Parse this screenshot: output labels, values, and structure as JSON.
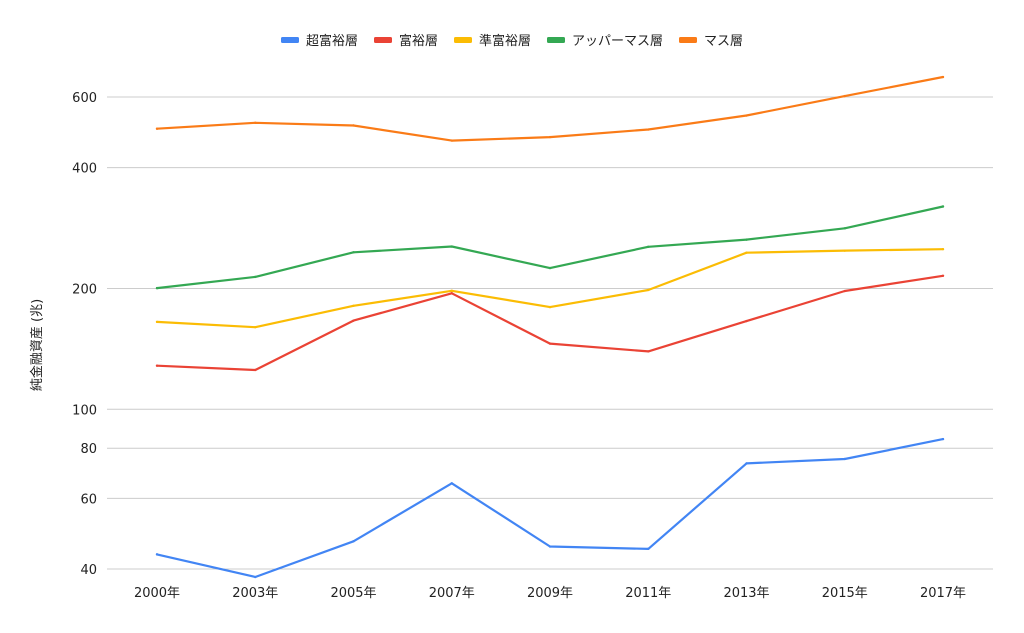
{
  "chart_data": {
    "type": "line",
    "title": "",
    "xlabel": "",
    "ylabel": "純金融資産 (兆)",
    "y_scale": "log",
    "ylim": [
      38,
      660
    ],
    "y_ticks": [
      40,
      60,
      80,
      100,
      200,
      400,
      600
    ],
    "y_tick_labels": [
      "40",
      "60",
      "80",
      "100",
      "200",
      "400",
      "600"
    ],
    "grid": true,
    "legend_position": "top",
    "categories": [
      "2000年",
      "2003年",
      "2005年",
      "2007年",
      "2009年",
      "2011年",
      "2013年",
      "2015年",
      "2017年"
    ],
    "series": [
      {
        "name": "超富裕層",
        "color": "#4285F4",
        "values": [
          43.5,
          38.2,
          46.9,
          65.4,
          45.5,
          44.9,
          73.3,
          75.2,
          84.3
        ]
      },
      {
        "name": "富裕層",
        "color": "#EA4335",
        "values": [
          128.4,
          125.3,
          166.3,
          194.6,
          145.8,
          139.4,
          165.9,
          197.1,
          215.1
        ]
      },
      {
        "name": "準富裕層",
        "color": "#FBBC04",
        "values": [
          165.1,
          160.2,
          181.1,
          197.4,
          179.7,
          198.3,
          245.6,
          248.5,
          250.6
        ]
      },
      {
        "name": "アッパーマス層",
        "color": "#34A853",
        "values": [
          200.4,
          213.7,
          246.1,
          254.4,
          224.8,
          254.0,
          264.7,
          282.4,
          320.1
        ]
      },
      {
        "name": "マス層",
        "color": "#FA7B17",
        "values": [
          500.1,
          517.5,
          509.6,
          467.2,
          476.7,
          497.8,
          539.5,
          603.0,
          672.8
        ]
      }
    ]
  }
}
